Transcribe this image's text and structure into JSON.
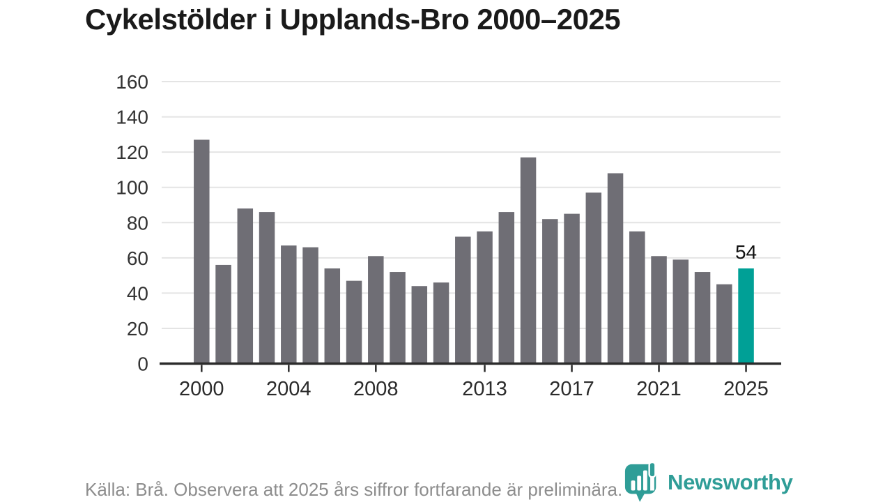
{
  "title": "Cykelstölder i Upplands-Bro 2000–2025",
  "footer": {
    "source_note": "Källa: Brå. Observera att 2025 års siffror fortfarande är preliminära."
  },
  "branding": {
    "logo_text": "Newsworthy",
    "logo_icon": "newsworthy-bubble-barchart-icon"
  },
  "colors": {
    "bar": "#6f6e75",
    "accent": "#00a096",
    "logo": "#2f9d97",
    "gridline": "#e4e4e4",
    "axis": "#2b2b2b",
    "tick_label": "#333333",
    "title": "#1a1a1a",
    "footer_text": "#8d8d8d",
    "value_label": "#111111"
  },
  "chart_data": {
    "type": "bar",
    "title": "Cykelstölder i Upplands-Bro 2000–2025",
    "xlabel": "",
    "ylabel": "",
    "x": [
      2000,
      2001,
      2002,
      2003,
      2004,
      2005,
      2006,
      2007,
      2008,
      2009,
      2010,
      2011,
      2012,
      2013,
      2014,
      2015,
      2016,
      2017,
      2018,
      2019,
      2020,
      2021,
      2022,
      2023,
      2024,
      2025
    ],
    "values": [
      127,
      56,
      88,
      86,
      67,
      66,
      54,
      47,
      61,
      52,
      44,
      46,
      72,
      75,
      86,
      117,
      82,
      85,
      97,
      108,
      75,
      61,
      59,
      52,
      45,
      54
    ],
    "highlight_year": 2025,
    "highlight_value_label": "54",
    "xticks": [
      2000,
      2004,
      2008,
      2013,
      2017,
      2021,
      2025
    ],
    "yticks": [
      0,
      20,
      40,
      60,
      80,
      100,
      120,
      140,
      160
    ],
    "ylim": [
      0,
      160
    ],
    "grid": true,
    "legend": false
  }
}
